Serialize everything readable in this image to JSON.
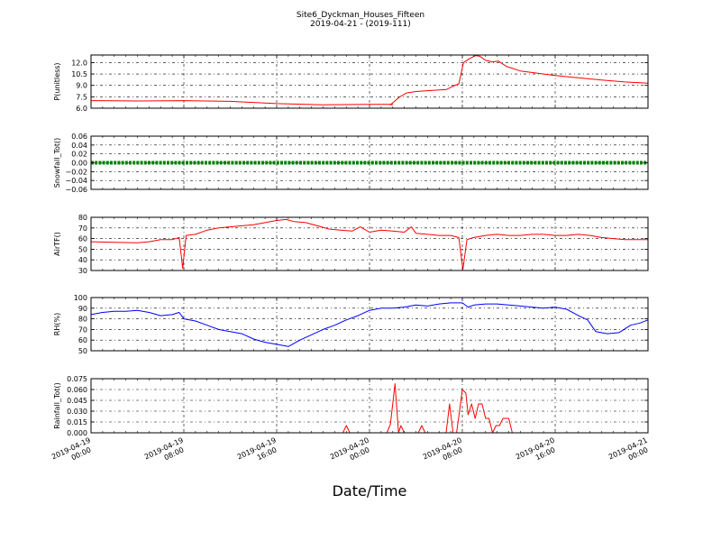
{
  "chart_data": {
    "type": "line",
    "title": "Site6_Dyckman_Houses_Fifteen",
    "subtitle": "2019-04-21 - (2019-111)",
    "xlabel": "Date/Time",
    "x_range": [
      "2019-04-19 00:00",
      "2019-04-21 00:00"
    ],
    "x_ticks": [
      {
        "line1": "2019-04-19",
        "line2": "00:00",
        "hours": 0
      },
      {
        "line1": "2019-04-19",
        "line2": "08:00",
        "hours": 8
      },
      {
        "line1": "2019-04-19",
        "line2": "16:00",
        "hours": 16
      },
      {
        "line1": "2019-04-20",
        "line2": "00:00",
        "hours": 24
      },
      {
        "line1": "2019-04-20",
        "line2": "08:00",
        "hours": 32
      },
      {
        "line1": "2019-04-20",
        "line2": "16:00",
        "hours": 40
      },
      {
        "line1": "2019-04-21",
        "line2": "00:00",
        "hours": 48
      }
    ],
    "grid": true,
    "panels": [
      {
        "ylabel": "P(unitless)",
        "ylim": [
          6.0,
          13.0
        ],
        "yticks": [
          "6.0",
          "7.5",
          "9.0",
          "10.5",
          "12.0"
        ],
        "ytick_values": [
          6.0,
          7.5,
          9.0,
          10.5,
          12.0
        ],
        "color": "#ff0000",
        "series": [
          {
            "x": 0,
            "y": 7.0
          },
          {
            "x": 4,
            "y": 6.95
          },
          {
            "x": 8,
            "y": 7.0
          },
          {
            "x": 12,
            "y": 6.9
          },
          {
            "x": 16,
            "y": 6.6
          },
          {
            "x": 20,
            "y": 6.45
          },
          {
            "x": 24,
            "y": 6.5
          },
          {
            "x": 26,
            "y": 6.5
          },
          {
            "x": 25.8,
            "y": 6.45
          },
          {
            "x": 26.6,
            "y": 7.5
          },
          {
            "x": 27.2,
            "y": 8.0
          },
          {
            "x": 28,
            "y": 8.2
          },
          {
            "x": 29,
            "y": 8.3
          },
          {
            "x": 30,
            "y": 8.4
          },
          {
            "x": 30.6,
            "y": 8.45
          },
          {
            "x": 31.2,
            "y": 8.9
          },
          {
            "x": 31.7,
            "y": 9.2
          },
          {
            "x": 32.1,
            "y": 12.0
          },
          {
            "x": 32.6,
            "y": 12.5
          },
          {
            "x": 33.1,
            "y": 12.9
          },
          {
            "x": 33.5,
            "y": 12.85
          },
          {
            "x": 34,
            "y": 12.3
          },
          {
            "x": 34.6,
            "y": 12.1
          },
          {
            "x": 35.1,
            "y": 12.2
          },
          {
            "x": 35.8,
            "y": 11.5
          },
          {
            "x": 37,
            "y": 10.9
          },
          {
            "x": 38.5,
            "y": 10.6
          },
          {
            "x": 40,
            "y": 10.3
          },
          {
            "x": 42,
            "y": 10.0
          },
          {
            "x": 44,
            "y": 9.7
          },
          {
            "x": 46,
            "y": 9.45
          },
          {
            "x": 48,
            "y": 9.3
          }
        ]
      },
      {
        "ylabel": "Snowfall_Tot()",
        "ylim": [
          -0.06,
          0.06
        ],
        "yticks": [
          "−0.06",
          "−0.04",
          "−0.02",
          "0.00",
          "0.02",
          "0.04",
          "0.06"
        ],
        "ytick_values": [
          -0.06,
          -0.04,
          -0.02,
          0.0,
          0.02,
          0.04,
          0.06
        ],
        "color": "#008000",
        "constant_value": 0.0,
        "marker": "dots"
      },
      {
        "ylabel": "AirTF()",
        "ylim": [
          30,
          80
        ],
        "yticks": [
          "30",
          "40",
          "50",
          "60",
          "70",
          "80"
        ],
        "ytick_values": [
          30,
          40,
          50,
          60,
          70,
          80
        ],
        "color": "#ff0000",
        "series": [
          {
            "x": 0,
            "y": 57
          },
          {
            "x": 2,
            "y": 56.5
          },
          {
            "x": 4,
            "y": 56
          },
          {
            "x": 5,
            "y": 57
          },
          {
            "x": 6,
            "y": 59
          },
          {
            "x": 7,
            "y": 59
          },
          {
            "x": 7.6,
            "y": 61
          },
          {
            "x": 7.9,
            "y": 32
          },
          {
            "x": 8.2,
            "y": 63
          },
          {
            "x": 9,
            "y": 64
          },
          {
            "x": 10,
            "y": 68
          },
          {
            "x": 11,
            "y": 70
          },
          {
            "x": 12,
            "y": 71
          },
          {
            "x": 13,
            "y": 72
          },
          {
            "x": 14,
            "y": 73
          },
          {
            "x": 15,
            "y": 75
          },
          {
            "x": 16,
            "y": 77
          },
          {
            "x": 16.8,
            "y": 78
          },
          {
            "x": 17.5,
            "y": 76
          },
          {
            "x": 18.5,
            "y": 75
          },
          {
            "x": 19.5,
            "y": 72
          },
          {
            "x": 20.5,
            "y": 69
          },
          {
            "x": 21.5,
            "y": 68
          },
          {
            "x": 22.5,
            "y": 67
          },
          {
            "x": 23.2,
            "y": 71
          },
          {
            "x": 24,
            "y": 66
          },
          {
            "x": 25,
            "y": 68
          },
          {
            "x": 26,
            "y": 67
          },
          {
            "x": 27,
            "y": 66
          },
          {
            "x": 27.6,
            "y": 71
          },
          {
            "x": 28,
            "y": 65
          },
          {
            "x": 29,
            "y": 64
          },
          {
            "x": 30,
            "y": 63
          },
          {
            "x": 31,
            "y": 63
          },
          {
            "x": 31.7,
            "y": 61
          },
          {
            "x": 32.05,
            "y": 31
          },
          {
            "x": 32.4,
            "y": 59
          },
          {
            "x": 33,
            "y": 61
          },
          {
            "x": 34,
            "y": 63
          },
          {
            "x": 35,
            "y": 64
          },
          {
            "x": 36,
            "y": 63
          },
          {
            "x": 37,
            "y": 63
          },
          {
            "x": 38,
            "y": 64
          },
          {
            "x": 39,
            "y": 64
          },
          {
            "x": 40,
            "y": 63
          },
          {
            "x": 41,
            "y": 63
          },
          {
            "x": 42,
            "y": 64
          },
          {
            "x": 43,
            "y": 63
          },
          {
            "x": 44,
            "y": 61
          },
          {
            "x": 45,
            "y": 60
          },
          {
            "x": 46,
            "y": 59
          },
          {
            "x": 47,
            "y": 59
          },
          {
            "x": 48,
            "y": 59
          }
        ]
      },
      {
        "ylabel": "RH(%)",
        "ylim": [
          50,
          100
        ],
        "yticks": [
          "50",
          "60",
          "70",
          "80",
          "90",
          "100"
        ],
        "ytick_values": [
          50,
          60,
          70,
          80,
          90,
          100
        ],
        "color": "#0000ff",
        "series": [
          {
            "x": 0,
            "y": 84
          },
          {
            "x": 1,
            "y": 86
          },
          {
            "x": 2,
            "y": 87
          },
          {
            "x": 3,
            "y": 87
          },
          {
            "x": 4,
            "y": 88
          },
          {
            "x": 5,
            "y": 86
          },
          {
            "x": 6,
            "y": 83
          },
          {
            "x": 7,
            "y": 84
          },
          {
            "x": 7.6,
            "y": 86
          },
          {
            "x": 8,
            "y": 80
          },
          {
            "x": 9,
            "y": 78
          },
          {
            "x": 10,
            "y": 74
          },
          {
            "x": 11,
            "y": 70
          },
          {
            "x": 12,
            "y": 68
          },
          {
            "x": 13,
            "y": 66
          },
          {
            "x": 14,
            "y": 61
          },
          {
            "x": 15,
            "y": 58
          },
          {
            "x": 16,
            "y": 56
          },
          {
            "x": 17,
            "y": 54
          },
          {
            "x": 18,
            "y": 60
          },
          {
            "x": 19,
            "y": 65
          },
          {
            "x": 20,
            "y": 70
          },
          {
            "x": 21,
            "y": 74
          },
          {
            "x": 22,
            "y": 79
          },
          {
            "x": 23,
            "y": 83
          },
          {
            "x": 24,
            "y": 88
          },
          {
            "x": 25,
            "y": 90
          },
          {
            "x": 26,
            "y": 90
          },
          {
            "x": 27,
            "y": 91
          },
          {
            "x": 28,
            "y": 93
          },
          {
            "x": 29,
            "y": 92
          },
          {
            "x": 30,
            "y": 94
          },
          {
            "x": 31,
            "y": 95
          },
          {
            "x": 32,
            "y": 95
          },
          {
            "x": 32.5,
            "y": 91
          },
          {
            "x": 33,
            "y": 93
          },
          {
            "x": 34,
            "y": 94
          },
          {
            "x": 35,
            "y": 94
          },
          {
            "x": 36,
            "y": 93
          },
          {
            "x": 37,
            "y": 92
          },
          {
            "x": 38,
            "y": 91
          },
          {
            "x": 39,
            "y": 90
          },
          {
            "x": 40,
            "y": 91
          },
          {
            "x": 41,
            "y": 89
          },
          {
            "x": 42,
            "y": 83
          },
          {
            "x": 42.8,
            "y": 79
          },
          {
            "x": 43.5,
            "y": 68
          },
          {
            "x": 44.5,
            "y": 66
          },
          {
            "x": 45.5,
            "y": 67
          },
          {
            "x": 46.5,
            "y": 74
          },
          {
            "x": 47.3,
            "y": 76
          },
          {
            "x": 48,
            "y": 79
          }
        ]
      },
      {
        "ylabel": "Rainfall_Tot()",
        "ylim": [
          0.0,
          0.075
        ],
        "yticks": [
          "0.000",
          "0.015",
          "0.030",
          "0.045",
          "0.060",
          "0.075"
        ],
        "ytick_values": [
          0.0,
          0.015,
          0.03,
          0.045,
          0.06,
          0.075
        ],
        "color": "#ff0000",
        "series": [
          {
            "x": 0,
            "y": 0.0
          },
          {
            "x": 21.7,
            "y": 0.0
          },
          {
            "x": 22.0,
            "y": 0.01
          },
          {
            "x": 22.3,
            "y": 0.0
          },
          {
            "x": 25.5,
            "y": 0.0
          },
          {
            "x": 25.8,
            "y": 0.012
          },
          {
            "x": 26.2,
            "y": 0.068
          },
          {
            "x": 26.5,
            "y": 0.0
          },
          {
            "x": 26.7,
            "y": 0.01
          },
          {
            "x": 27.0,
            "y": 0.0
          },
          {
            "x": 28.2,
            "y": 0.0
          },
          {
            "x": 28.5,
            "y": 0.01
          },
          {
            "x": 28.8,
            "y": 0.0
          },
          {
            "x": 30.6,
            "y": 0.0
          },
          {
            "x": 30.9,
            "y": 0.04
          },
          {
            "x": 31.2,
            "y": 0.0
          },
          {
            "x": 31.5,
            "y": 0.0
          },
          {
            "x": 31.8,
            "y": 0.035
          },
          {
            "x": 32.0,
            "y": 0.06
          },
          {
            "x": 32.3,
            "y": 0.055
          },
          {
            "x": 32.5,
            "y": 0.025
          },
          {
            "x": 32.8,
            "y": 0.04
          },
          {
            "x": 33.1,
            "y": 0.02
          },
          {
            "x": 33.4,
            "y": 0.04
          },
          {
            "x": 33.7,
            "y": 0.04
          },
          {
            "x": 34.0,
            "y": 0.02
          },
          {
            "x": 34.3,
            "y": 0.02
          },
          {
            "x": 34.6,
            "y": 0.0
          },
          {
            "x": 34.9,
            "y": 0.01
          },
          {
            "x": 35.2,
            "y": 0.01
          },
          {
            "x": 35.5,
            "y": 0.02
          },
          {
            "x": 36.0,
            "y": 0.02
          },
          {
            "x": 36.3,
            "y": 0.0
          },
          {
            "x": 48,
            "y": 0.0
          }
        ]
      }
    ]
  }
}
